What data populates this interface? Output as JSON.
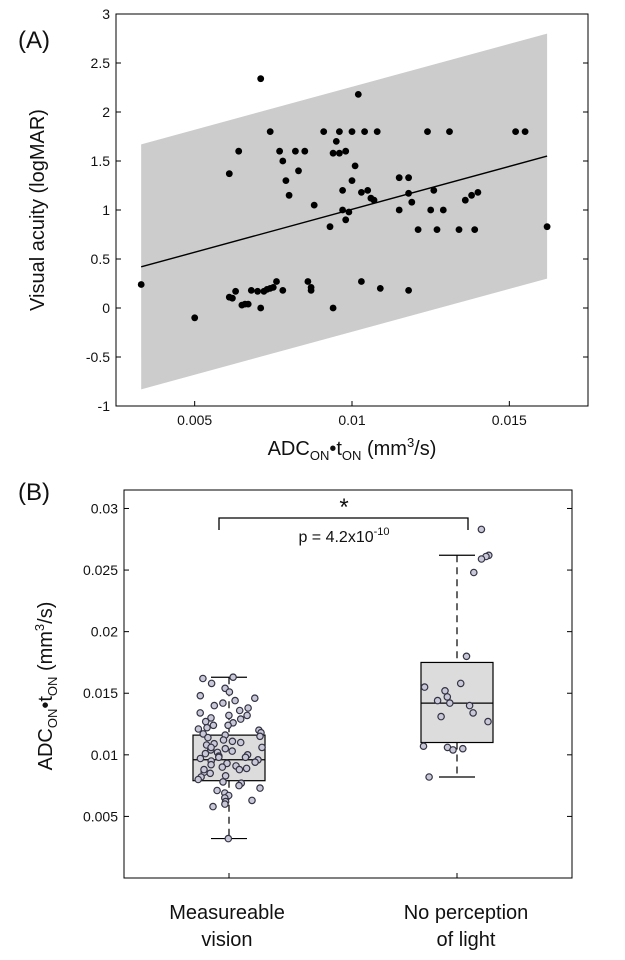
{
  "panel_a": {
    "label": "(A)",
    "ylabel": "Visual acuity (logMAR)",
    "xlabel": {
      "main": "ADC",
      "sub1": "ON",
      "mid": "•t",
      "sub2": "ON",
      "rest": " (mm",
      "sup": "3",
      "tail": "/s)"
    },
    "xticks": [
      "0.005",
      "0.01",
      "0.015"
    ],
    "yticks": [
      "-1",
      "-0.5",
      "0",
      "0.5",
      "1",
      "1.5",
      "2",
      "2.5",
      "3"
    ]
  },
  "panel_b": {
    "label": "(B)",
    "ylabel": {
      "main": "ADC",
      "sub1": "ON",
      "mid": "•t",
      "sub2": "ON",
      "rest": " (mm",
      "sup": "3",
      "tail": "/s)"
    },
    "yticks": [
      "0.005",
      "0.01",
      "0.015",
      "0.02",
      "0.025",
      "0.03"
    ],
    "sig_star": "*",
    "p_text": {
      "main": "p = 4.2x10",
      "sup": "-10"
    },
    "categories": [
      [
        "Measureable",
        "vision"
      ],
      [
        "No perception",
        "of light"
      ]
    ]
  },
  "colors": {
    "band": "#cccccc",
    "point": "#000000",
    "box_fill": "#dcdcdc",
    "hollow_fill": "#c8c8d8",
    "hollow_stroke": "#333344"
  },
  "chart_data": [
    {
      "type": "scatter",
      "title": "",
      "xlabel": "ADC_ON•t_ON (mm3/s)",
      "ylabel": "Visual acuity (logMAR)",
      "xlim": [
        0.0025,
        0.0175
      ],
      "ylim": [
        -1,
        3
      ],
      "regression": {
        "x": [
          0.0033,
          0.0162
        ],
        "y": [
          0.42,
          1.55
        ]
      },
      "prediction_band": {
        "x": [
          0.0033,
          0.0162
        ],
        "upper": [
          1.67,
          2.8
        ],
        "lower": [
          -0.83,
          0.3
        ]
      },
      "points": [
        [
          0.0033,
          0.24
        ],
        [
          0.005,
          -0.1
        ],
        [
          0.0061,
          0.11
        ],
        [
          0.0062,
          0.1
        ],
        [
          0.0063,
          0.17
        ],
        [
          0.0065,
          0.03
        ],
        [
          0.0066,
          0.04
        ],
        [
          0.0067,
          0.04
        ],
        [
          0.0068,
          0.18
        ],
        [
          0.007,
          0.17
        ],
        [
          0.0071,
          0.0
        ],
        [
          0.0072,
          0.17
        ],
        [
          0.0073,
          0.19
        ],
        [
          0.0074,
          0.2
        ],
        [
          0.0075,
          0.21
        ],
        [
          0.0076,
          0.27
        ],
        [
          0.0078,
          0.18
        ],
        [
          0.0086,
          0.27
        ],
        [
          0.0087,
          0.21
        ],
        [
          0.0087,
          0.18
        ],
        [
          0.0094,
          0.0
        ],
        [
          0.0103,
          0.27
        ],
        [
          0.0109,
          0.2
        ],
        [
          0.0118,
          0.18
        ],
        [
          0.0061,
          1.37
        ],
        [
          0.0064,
          1.6
        ],
        [
          0.0071,
          2.34
        ],
        [
          0.0074,
          1.8
        ],
        [
          0.0077,
          1.6
        ],
        [
          0.0078,
          1.5
        ],
        [
          0.0079,
          1.3
        ],
        [
          0.008,
          1.15
        ],
        [
          0.0082,
          1.6
        ],
        [
          0.0083,
          1.4
        ],
        [
          0.0085,
          1.6
        ],
        [
          0.0088,
          1.05
        ],
        [
          0.0091,
          1.8
        ],
        [
          0.0094,
          1.58
        ],
        [
          0.0095,
          1.7
        ],
        [
          0.0096,
          1.8
        ],
        [
          0.0096,
          1.58
        ],
        [
          0.0097,
          1.0
        ],
        [
          0.0097,
          1.2
        ],
        [
          0.0098,
          1.6
        ],
        [
          0.01,
          1.8
        ],
        [
          0.0101,
          1.45
        ],
        [
          0.0102,
          2.18
        ],
        [
          0.0104,
          1.8
        ],
        [
          0.0106,
          1.12
        ],
        [
          0.0108,
          1.8
        ],
        [
          0.01,
          1.3
        ],
        [
          0.0099,
          0.98
        ],
        [
          0.0098,
          0.9
        ],
        [
          0.0093,
          0.83
        ],
        [
          0.0103,
          1.18
        ],
        [
          0.0105,
          1.2
        ],
        [
          0.0107,
          1.1
        ],
        [
          0.0115,
          1.33
        ],
        [
          0.0115,
          1.0
        ],
        [
          0.0118,
          1.33
        ],
        [
          0.0118,
          1.17
        ],
        [
          0.0119,
          1.08
        ],
        [
          0.0121,
          0.8
        ],
        [
          0.0124,
          1.8
        ],
        [
          0.0125,
          1.0
        ],
        [
          0.0126,
          1.2
        ],
        [
          0.0127,
          0.8
        ],
        [
          0.0129,
          1.0
        ],
        [
          0.0131,
          1.8
        ],
        [
          0.0134,
          0.8
        ],
        [
          0.0138,
          1.15
        ],
        [
          0.014,
          1.18
        ],
        [
          0.0136,
          1.1
        ],
        [
          0.0139,
          0.8
        ],
        [
          0.0152,
          1.8
        ],
        [
          0.0155,
          1.8
        ],
        [
          0.0162,
          0.83
        ]
      ]
    },
    {
      "type": "box",
      "title": "",
      "ylabel": "ADC_ON•t_ON (mm3/s)",
      "ylim": [
        0.0,
        0.0315
      ],
      "categories": [
        "Measureable vision",
        "No perception of light"
      ],
      "boxes": [
        {
          "name": "Measureable vision",
          "whisker_low": 0.0032,
          "q1": 0.0079,
          "median": 0.0096,
          "q3": 0.0116,
          "whisker_high": 0.0163
        },
        {
          "name": "No perception of light",
          "whisker_low": 0.0082,
          "q1": 0.011,
          "median": 0.0142,
          "q3": 0.0175,
          "whisker_high": 0.0262
        }
      ],
      "points_group1": [
        0.0032,
        0.0163,
        0.0162,
        0.0158,
        0.0154,
        0.0151,
        0.0148,
        0.0146,
        0.0144,
        0.0142,
        0.014,
        0.0138,
        0.0136,
        0.0134,
        0.0132,
        0.013,
        0.0129,
        0.0127,
        0.0126,
        0.0124,
        0.0122,
        0.0121,
        0.012,
        0.0118,
        0.0117,
        0.0116,
        0.0115,
        0.0114,
        0.0112,
        0.0111,
        0.011,
        0.0109,
        0.0108,
        0.0106,
        0.0105,
        0.0104,
        0.0103,
        0.0102,
        0.0101,
        0.01,
        0.0099,
        0.0098,
        0.0097,
        0.0096,
        0.0095,
        0.0094,
        0.0093,
        0.0092,
        0.0091,
        0.009,
        0.0089,
        0.0088,
        0.0086,
        0.0085,
        0.0083,
        0.0082,
        0.008,
        0.0078,
        0.0077,
        0.0075,
        0.0073,
        0.0071,
        0.0069,
        0.0067,
        0.0065,
        0.0063,
        0.0062,
        0.006,
        0.0058,
        0.0106,
        0.0098,
        0.0088,
        0.0124,
        0.0132
      ],
      "points_group2": [
        0.0283,
        0.0262,
        0.0261,
        0.0259,
        0.0248,
        0.018,
        0.0158,
        0.0155,
        0.0152,
        0.0147,
        0.0144,
        0.0142,
        0.014,
        0.0134,
        0.0131,
        0.0127,
        0.0107,
        0.0106,
        0.0105,
        0.0104,
        0.0082
      ],
      "annotation": {
        "text": "p = 4.2x10^-10",
        "marker": "*"
      }
    }
  ]
}
